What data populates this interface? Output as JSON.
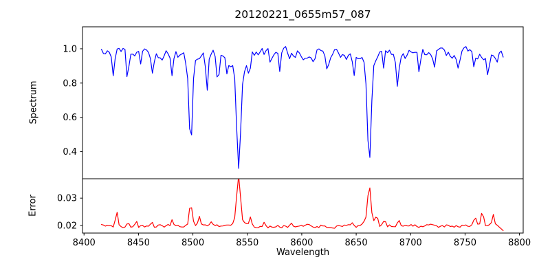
{
  "figure": {
    "background": "#ffffff",
    "axis_color": "#000000",
    "title": "20120221_0655m57_087"
  },
  "chart_data": [
    {
      "type": "line",
      "name": "spectrum",
      "title": "20120221_0655m57_087",
      "ylabel": "Spectrum",
      "line_color": "#0000ff",
      "xlim": [
        8398.6,
        8803.4
      ],
      "ylim": [
        0.242,
        1.128
      ],
      "yticks": [
        0.4,
        0.6,
        0.8,
        1.0
      ],
      "ytick_labels": [
        "0.4",
        "0.6",
        "0.8",
        "1.0"
      ],
      "grid": false,
      "legend": "none",
      "x_data_range": [
        8416,
        8785
      ],
      "sample_step": 1.8,
      "baseline": 0.97,
      "noise": {
        "amplitude": 0.028,
        "correlation": 0.5,
        "seed": 12345,
        "max_clip": 1.078
      },
      "absorption_lines": [
        {
          "center": 8427,
          "depth": 0.11,
          "sigma": 1.0
        },
        {
          "center": 8440,
          "depth": 0.21,
          "sigma": 1.0
        },
        {
          "center": 8452,
          "depth": 0.08,
          "sigma": 0.9
        },
        {
          "center": 8463,
          "depth": 0.1,
          "sigma": 0.9
        },
        {
          "center": 8481,
          "depth": 0.1,
          "sigma": 0.9
        },
        {
          "center": 8498,
          "depth": 0.48,
          "sigma": 1.5,
          "wing_depth": 0.08,
          "wing_sigma": 4
        },
        {
          "center": 8513,
          "depth": 0.2,
          "sigma": 1.1
        },
        {
          "center": 8523,
          "depth": 0.15,
          "sigma": 1.0
        },
        {
          "center": 8531,
          "depth": 0.1,
          "sigma": 0.9
        },
        {
          "center": 8542,
          "depth": 0.57,
          "sigma": 1.8,
          "wing_depth": 0.12,
          "wing_sigma": 6
        },
        {
          "center": 8552,
          "depth": 0.1,
          "sigma": 0.9
        },
        {
          "center": 8571,
          "depth": 0.07,
          "sigma": 0.8
        },
        {
          "center": 8580,
          "depth": 0.12,
          "sigma": 0.9
        },
        {
          "center": 8588,
          "depth": 0.08,
          "sigma": 0.8
        },
        {
          "center": 8611,
          "depth": 0.07,
          "sigma": 0.8
        },
        {
          "center": 8624,
          "depth": 0.11,
          "sigma": 0.9
        },
        {
          "center": 8648,
          "depth": 0.11,
          "sigma": 0.9
        },
        {
          "center": 8662,
          "depth": 0.55,
          "sigma": 1.7,
          "wing_depth": 0.11,
          "wing_sigma": 5
        },
        {
          "center": 8675,
          "depth": 0.08,
          "sigma": 0.8
        },
        {
          "center": 8688,
          "depth": 0.17,
          "sigma": 1.0
        },
        {
          "center": 8708,
          "depth": 0.11,
          "sigma": 0.9
        },
        {
          "center": 8722,
          "depth": 0.08,
          "sigma": 0.8
        },
        {
          "center": 8744,
          "depth": 0.09,
          "sigma": 0.8
        },
        {
          "center": 8758,
          "depth": 0.08,
          "sigma": 0.8
        },
        {
          "center": 8771,
          "depth": 0.13,
          "sigma": 0.9
        },
        {
          "center": 8779,
          "depth": 0.08,
          "sigma": 0.8
        }
      ]
    },
    {
      "type": "line",
      "name": "error",
      "ylabel": "Error",
      "xlabel": "Wavelength",
      "line_color": "#ff0000",
      "xlim": [
        8398.6,
        8803.4
      ],
      "ylim": [
        0.0172,
        0.0371
      ],
      "yticks": [
        0.02,
        0.03
      ],
      "ytick_labels": [
        "0.02",
        "0.03"
      ],
      "xticks": [
        8400,
        8450,
        8500,
        8550,
        8600,
        8650,
        8700,
        8750,
        8800
      ],
      "xtick_labels": [
        "8400",
        "8450",
        "8500",
        "8550",
        "8600",
        "8650",
        "8700",
        "8750",
        "8800"
      ],
      "grid": false,
      "legend": "none",
      "x_data_range": [
        8416,
        8785
      ],
      "sample_step": 1.8,
      "baseline": 0.0198,
      "noise": {
        "amplitude": 0.00055,
        "correlation": 0.4,
        "seed": 999
      },
      "peaks": [
        {
          "center": 8430,
          "height": 0.005,
          "sigma": 1.1
        },
        {
          "center": 8440,
          "height": 0.0018,
          "sigma": 0.9
        },
        {
          "center": 8448,
          "height": 0.0022,
          "sigma": 0.9
        },
        {
          "center": 8462,
          "height": 0.0018,
          "sigma": 0.9
        },
        {
          "center": 8481,
          "height": 0.0022,
          "sigma": 1.0
        },
        {
          "center": 8498,
          "height": 0.0085,
          "sigma": 1.4
        },
        {
          "center": 8506,
          "height": 0.003,
          "sigma": 1.0
        },
        {
          "center": 8517,
          "height": 0.002,
          "sigma": 0.9
        },
        {
          "center": 8542,
          "height": 0.0162,
          "sigma": 1.6,
          "wing_height": 0.002,
          "wing_sigma": 5
        },
        {
          "center": 8553,
          "height": 0.0035,
          "sigma": 1.0
        },
        {
          "center": 8566,
          "height": 0.0015,
          "sigma": 0.9
        },
        {
          "center": 8590,
          "height": 0.0012,
          "sigma": 0.9
        },
        {
          "center": 8647,
          "height": 0.0016,
          "sigma": 0.9
        },
        {
          "center": 8662,
          "height": 0.013,
          "sigma": 1.5,
          "wing_height": 0.002,
          "wing_sigma": 5
        },
        {
          "center": 8669,
          "height": 0.0035,
          "sigma": 1.0
        },
        {
          "center": 8676,
          "height": 0.002,
          "sigma": 0.9
        },
        {
          "center": 8689,
          "height": 0.0025,
          "sigma": 1.0
        },
        {
          "center": 8759,
          "height": 0.0035,
          "sigma": 1.0
        },
        {
          "center": 8766,
          "height": 0.0055,
          "sigma": 1.1
        },
        {
          "center": 8776,
          "height": 0.0045,
          "sigma": 1.0
        },
        {
          "center": 8786,
          "height": -0.0014,
          "sigma": 2.0
        }
      ]
    }
  ]
}
